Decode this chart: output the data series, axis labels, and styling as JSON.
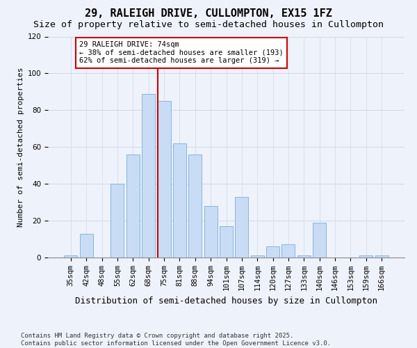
{
  "title": "29, RALEIGH DRIVE, CULLOMPTON, EX15 1FZ",
  "subtitle": "Size of property relative to semi-detached houses in Cullompton",
  "xlabel": "Distribution of semi-detached houses by size in Cullompton",
  "ylabel": "Number of semi-detached properties",
  "bar_color": "#c8dcf5",
  "bar_edge_color": "#7aadd6",
  "grid_color": "#d0d8e8",
  "background_color": "#eef2fa",
  "categories": [
    "35sqm",
    "42sqm",
    "48sqm",
    "55sqm",
    "62sqm",
    "68sqm",
    "75sqm",
    "81sqm",
    "88sqm",
    "94sqm",
    "101sqm",
    "107sqm",
    "114sqm",
    "120sqm",
    "127sqm",
    "133sqm",
    "140sqm",
    "146sqm",
    "153sqm",
    "159sqm",
    "166sqm"
  ],
  "values": [
    1,
    13,
    0,
    40,
    56,
    89,
    85,
    62,
    56,
    28,
    17,
    33,
    1,
    6,
    7,
    1,
    19,
    0,
    0,
    1,
    1
  ],
  "ylim": [
    0,
    120
  ],
  "yticks": [
    0,
    20,
    40,
    60,
    80,
    100,
    120
  ],
  "vline_idx": 6,
  "vline_color": "#cc0000",
  "annotation_text": "29 RALEIGH DRIVE: 74sqm\n← 38% of semi-detached houses are smaller (193)\n62% of semi-detached houses are larger (319) →",
  "annotation_box_facecolor": "#ffffff",
  "annotation_box_edgecolor": "#cc0000",
  "footer_text": "Contains HM Land Registry data © Crown copyright and database right 2025.\nContains public sector information licensed under the Open Government Licence v3.0.",
  "title_fontsize": 11,
  "subtitle_fontsize": 9.5,
  "xlabel_fontsize": 9,
  "ylabel_fontsize": 8,
  "tick_fontsize": 7.5,
  "annotation_fontsize": 7.5,
  "footer_fontsize": 6.5
}
